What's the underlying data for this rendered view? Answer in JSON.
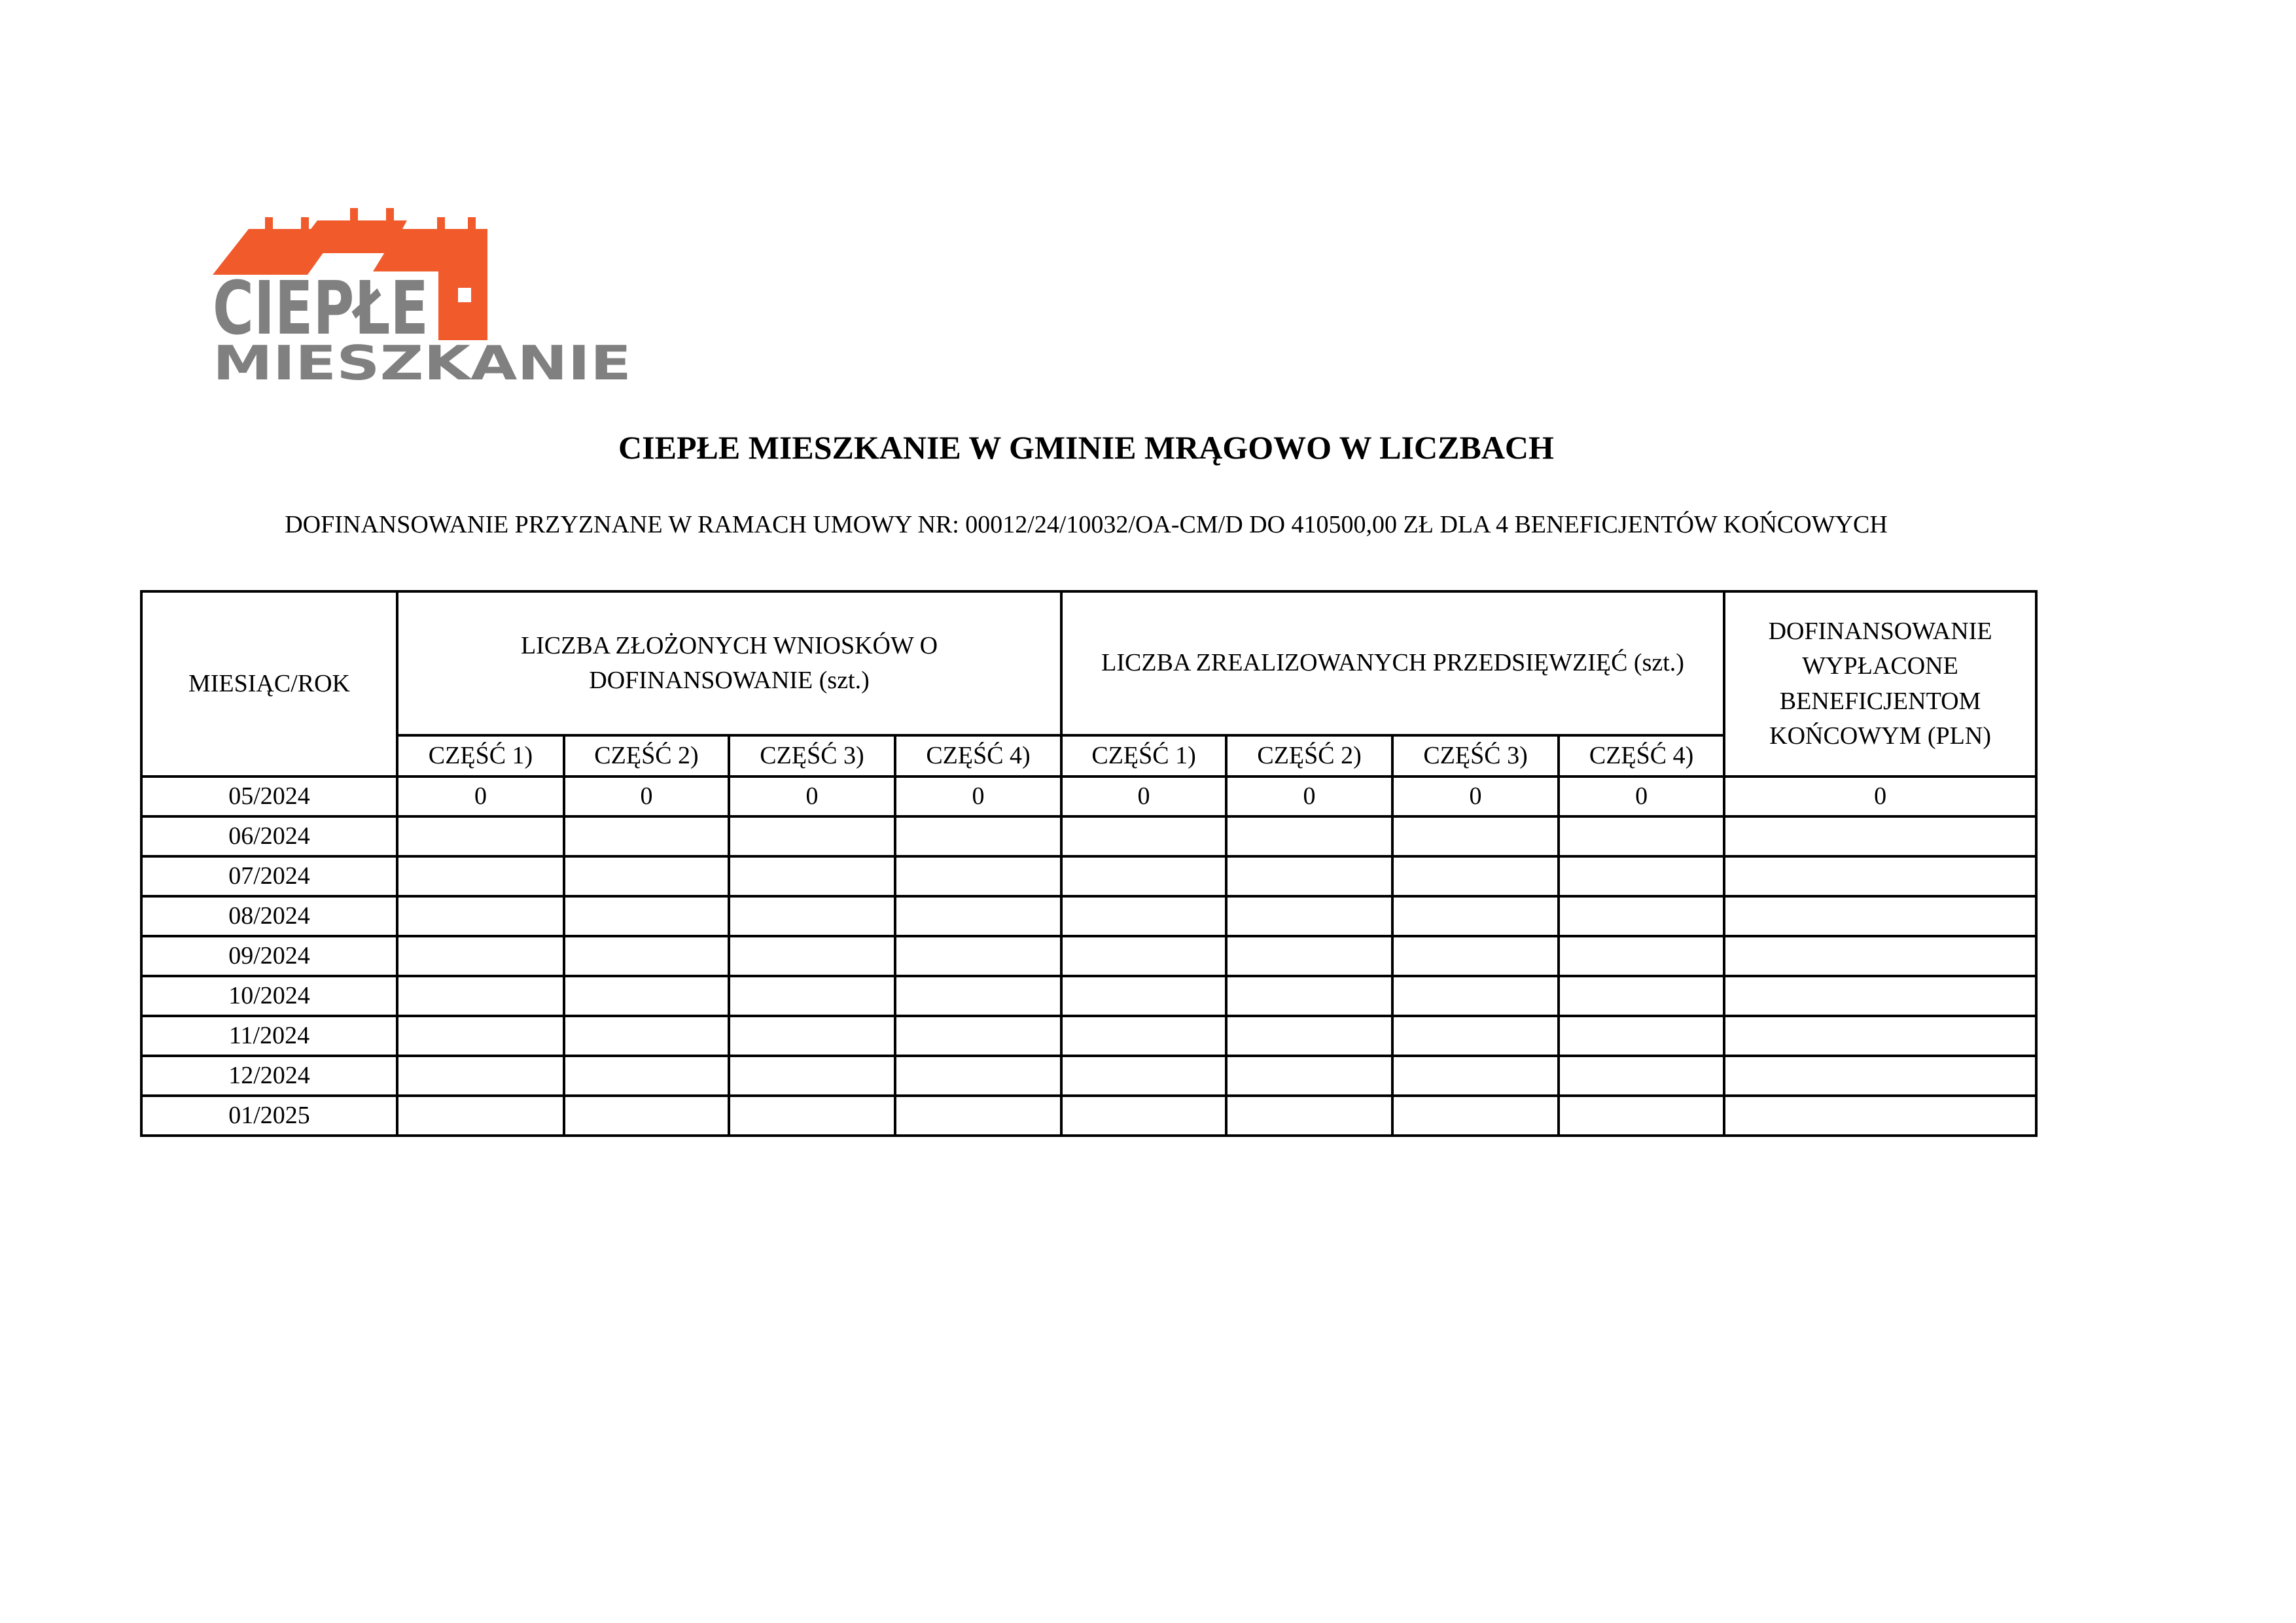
{
  "logo": {
    "line1": "CIEPŁE",
    "line2": "MIESZKANIE",
    "colors": {
      "orange": "#f15a2b",
      "gray": "#808080"
    }
  },
  "title": "CIEPŁE MIESZKANIE W GMINIE MRĄGOWO W LICZBACH",
  "subtitle": "DOFINANSOWANIE PRZYZNANE W RAMACH UMOWY NR: 00012/24/10032/OA-CM/D DO 410500,00 ZŁ DLA 4 BENEFICJENTÓW KOŃCOWYCH",
  "table": {
    "headers": {
      "month": "MIESIĄC/ROK",
      "applications": "LICZBA ZŁOŻONYCH WNIOSKÓW O DOFINANSOWANIE (szt.)",
      "completed": "LICZBA ZREALIZOWANYCH PRZEDSIĘWZIĘĆ (szt.)",
      "paid": "DOFINANSOWANIE WYPŁACONE BENEFICJENTOM KOŃCOWYM (PLN)",
      "parts": [
        "CZĘŚĆ 1)",
        "CZĘŚĆ 2)",
        "CZĘŚĆ 3)",
        "CZĘŚĆ 4)"
      ]
    },
    "rows": [
      {
        "month": "05/2024",
        "values": [
          "0",
          "0",
          "0",
          "0",
          "0",
          "0",
          "0",
          "0",
          "0"
        ]
      },
      {
        "month": "06/2024",
        "values": [
          "",
          "",
          "",
          "",
          "",
          "",
          "",
          "",
          ""
        ]
      },
      {
        "month": "07/2024",
        "values": [
          "",
          "",
          "",
          "",
          "",
          "",
          "",
          "",
          ""
        ]
      },
      {
        "month": "08/2024",
        "values": [
          "",
          "",
          "",
          "",
          "",
          "",
          "",
          "",
          ""
        ]
      },
      {
        "month": "09/2024",
        "values": [
          "",
          "",
          "",
          "",
          "",
          "",
          "",
          "",
          ""
        ]
      },
      {
        "month": "10/2024",
        "values": [
          "",
          "",
          "",
          "",
          "",
          "",
          "",
          "",
          ""
        ]
      },
      {
        "month": "11/2024",
        "values": [
          "",
          "",
          "",
          "",
          "",
          "",
          "",
          "",
          ""
        ]
      },
      {
        "month": "12/2024",
        "values": [
          "",
          "",
          "",
          "",
          "",
          "",
          "",
          "",
          ""
        ]
      },
      {
        "month": "01/2025",
        "values": [
          "",
          "",
          "",
          "",
          "",
          "",
          "",
          "",
          ""
        ]
      }
    ]
  }
}
